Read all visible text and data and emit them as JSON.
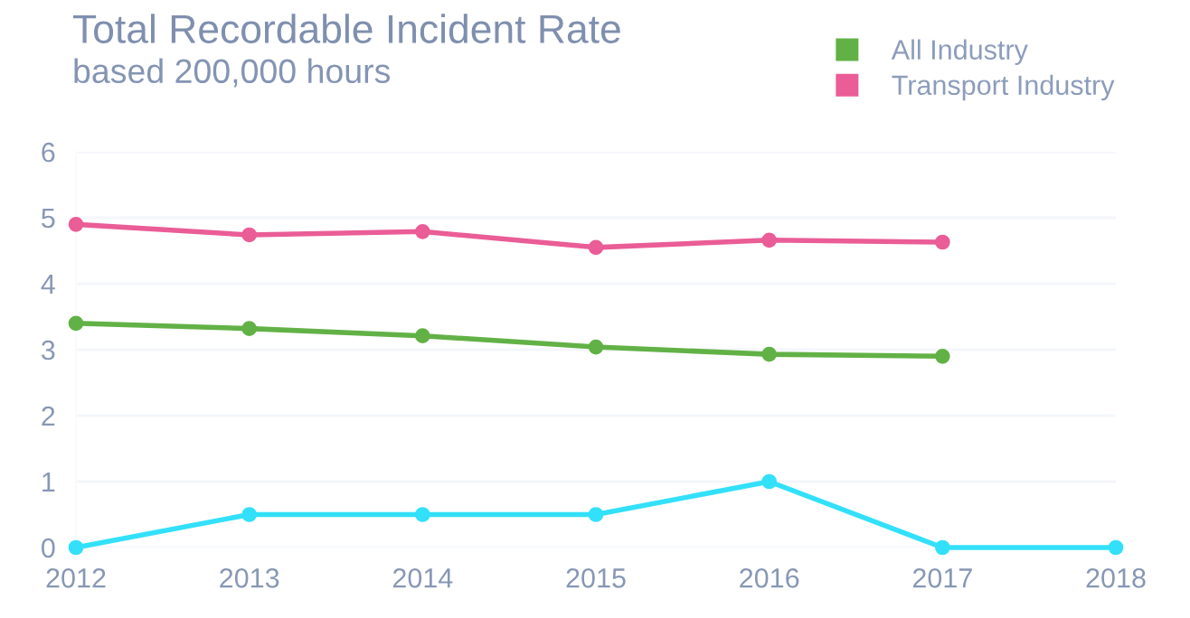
{
  "chart_data": {
    "type": "line",
    "title": "Total Recordable Incident Rate",
    "subtitle": "based 200,000 hours",
    "x": [
      2012,
      2013,
      2014,
      2015,
      2016,
      2017,
      2018
    ],
    "series": [
      {
        "name": "All Industry",
        "color": "#62b146",
        "values": [
          3.4,
          3.32,
          3.21,
          3.04,
          2.93,
          2.9,
          null
        ]
      },
      {
        "name": "Transport Industry",
        "color": "#ea5d96",
        "values": [
          4.9,
          4.74,
          4.79,
          4.55,
          4.66,
          4.63,
          null
        ]
      },
      {
        "color": "#33e0fa",
        "values": [
          0,
          0.5,
          0.5,
          0.5,
          1,
          0,
          0
        ]
      }
    ],
    "xlim": [
      2012,
      2018
    ],
    "xticks": [
      2012,
      2013,
      2014,
      2015,
      2016,
      2017,
      2018
    ],
    "ylim": [
      0,
      6
    ],
    "yticks": [
      0,
      1,
      2,
      3,
      4,
      5,
      6
    ],
    "grid": "y",
    "legend": "top right",
    "marker": "circle",
    "line_style": "solid"
  }
}
